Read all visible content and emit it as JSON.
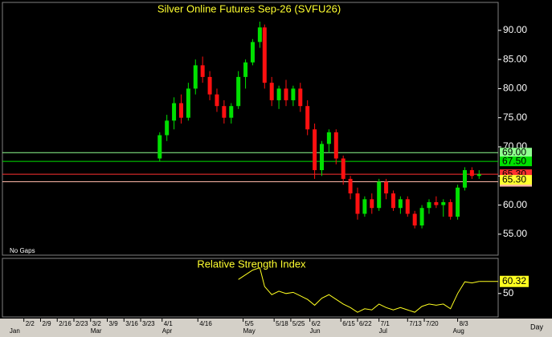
{
  "chart_data": [
    {
      "type": "candlestick",
      "title": "Silver Online Futures Sep-26 (SVFU26)",
      "note": "No Gaps",
      "x_unit": "Day",
      "x": [
        90,
        93,
        96,
        99,
        102,
        105,
        108,
        111,
        114,
        117,
        120,
        123,
        126,
        129,
        132,
        134,
        137,
        140,
        143,
        146,
        149,
        152,
        155,
        158,
        161,
        164,
        167,
        170,
        173,
        176,
        179,
        182,
        185,
        188,
        191,
        194,
        197,
        200,
        203,
        206,
        209,
        212,
        215,
        218,
        221,
        224
      ],
      "open": [
        68,
        72,
        74.5,
        77.5,
        75,
        80,
        84,
        82,
        79,
        77,
        75,
        77,
        82,
        84.5,
        88,
        90.5,
        81,
        78,
        80,
        78,
        80,
        77,
        73,
        66,
        70.5,
        72.5,
        68,
        64.5,
        62,
        58.5,
        61,
        59.5,
        64,
        62,
        59.5,
        61,
        58.5,
        56.5,
        59.5,
        60.5,
        60,
        60.5,
        58,
        63,
        66,
        65
      ],
      "high": [
        72.5,
        75.5,
        78.5,
        79,
        81,
        85,
        85.5,
        83,
        80,
        78,
        77.5,
        83,
        85,
        88.5,
        91.5,
        91,
        82,
        80.5,
        81.5,
        80.5,
        81,
        78,
        74,
        71,
        73,
        73,
        68.5,
        65,
        63,
        61.5,
        62,
        64.5,
        64.5,
        62.5,
        61.5,
        61.5,
        59,
        60,
        61,
        61.5,
        61,
        61,
        63.5,
        66.5,
        66.5,
        66
      ],
      "low": [
        67.5,
        71,
        73,
        74,
        74.5,
        79,
        81,
        78,
        76,
        74,
        74,
        76.5,
        80,
        84,
        87,
        80,
        77,
        76.5,
        77,
        77,
        76,
        72,
        64.5,
        65,
        69,
        67,
        63.5,
        61,
        57.5,
        58,
        58.5,
        59,
        61,
        59,
        58.5,
        58,
        56,
        56,
        58.5,
        59.5,
        58,
        57.5,
        57.5,
        62.5,
        64.5,
        64.5
      ],
      "close": [
        72,
        74.5,
        77.5,
        75,
        80,
        84,
        82,
        79,
        77,
        75,
        77,
        82,
        84.5,
        88,
        90.5,
        81,
        78,
        80,
        78,
        80,
        77,
        73,
        66,
        70.5,
        72.5,
        68,
        64.5,
        62,
        58.5,
        61,
        59.5,
        64,
        62,
        59.5,
        61,
        58.5,
        56.5,
        59.5,
        60.5,
        60,
        60.5,
        58,
        63,
        66,
        65,
        65.3
      ],
      "up_color": "#00e000",
      "down_color": "#ff1010",
      "ylim": [
        51.4,
        94.8
      ],
      "yticks": [
        {
          "value": 55,
          "label": "55.00"
        },
        {
          "value": 60,
          "label": "60.00"
        },
        {
          "value": 65,
          "label": "65.00"
        },
        {
          "value": 70,
          "label": "70.00"
        },
        {
          "value": 75,
          "label": "75.00"
        },
        {
          "value": 80,
          "label": "80.00"
        },
        {
          "value": 85,
          "label": "85.00"
        },
        {
          "value": 90,
          "label": "90.00"
        }
      ],
      "levels": [
        {
          "value": 69,
          "label": "69.00",
          "color": "#90ff90"
        },
        {
          "value": 67.5,
          "label": "67.50",
          "color": "#00e000"
        },
        {
          "value": 65.3,
          "label": "65.30",
          "color": "#ff3030"
        },
        {
          "value": 64,
          "label": "64.00",
          "color": "#ffb8a8"
        }
      ],
      "last_price": {
        "value": 65.3,
        "label": "65.30",
        "color": "#ffff30"
      },
      "xlim": [
        24,
        232
      ],
      "xticks": [
        {
          "value": 33,
          "label": "2/2"
        },
        {
          "value": 40,
          "label": "2/9"
        },
        {
          "value": 47,
          "label": "2/16"
        },
        {
          "value": 54,
          "label": "2/23"
        },
        {
          "value": 61,
          "label": "3/2"
        },
        {
          "value": 68,
          "label": "3/9"
        },
        {
          "value": 75,
          "label": "3/16"
        },
        {
          "value": 82,
          "label": "3/23"
        },
        {
          "value": 91,
          "label": "4/1"
        },
        {
          "value": 106,
          "label": "4/16"
        },
        {
          "value": 125,
          "label": "5/5"
        },
        {
          "value": 138,
          "label": "5/18"
        },
        {
          "value": 145,
          "label": "5/25"
        },
        {
          "value": 153,
          "label": "6/2"
        },
        {
          "value": 166,
          "label": "6/15"
        },
        {
          "value": 173,
          "label": "6/22"
        },
        {
          "value": 182,
          "label": "7/1"
        },
        {
          "value": 194,
          "label": "7/13"
        },
        {
          "value": 201,
          "label": "7/20"
        },
        {
          "value": 215,
          "label": "8/3"
        }
      ],
      "month_ticks": [
        {
          "value": 27,
          "label": "Jan"
        },
        {
          "value": 61,
          "label": "Mar"
        },
        {
          "value": 91,
          "label": "Apr"
        },
        {
          "value": 125,
          "label": "May"
        },
        {
          "value": 153,
          "label": "Jun"
        },
        {
          "value": 182,
          "label": "Jul"
        },
        {
          "value": 213,
          "label": "Aug"
        }
      ]
    },
    {
      "type": "line",
      "title": "Relative Strength Index",
      "color": "#ffff20",
      "x": [
        90,
        93,
        96,
        99,
        102,
        105,
        108,
        111,
        114,
        117,
        120,
        123,
        126,
        129,
        132,
        134,
        137,
        140,
        143,
        146,
        149,
        152,
        155,
        158,
        161,
        164,
        167,
        170,
        173,
        176,
        179,
        182,
        185,
        188,
        191,
        194,
        197,
        200,
        203,
        206,
        209,
        212,
        215,
        218,
        221,
        224
      ],
      "values": [
        null,
        null,
        null,
        null,
        null,
        null,
        null,
        null,
        null,
        null,
        null,
        62,
        66,
        70,
        72,
        56,
        49,
        52,
        50,
        51,
        48,
        45,
        40,
        46,
        49,
        45,
        41,
        38,
        34,
        37,
        36,
        41,
        38,
        36,
        38,
        36,
        34,
        39,
        41,
        40,
        41,
        37,
        50,
        60,
        59,
        60.32
      ],
      "ylim": [
        30,
        80
      ],
      "yticks": [
        50
      ]
    }
  ]
}
